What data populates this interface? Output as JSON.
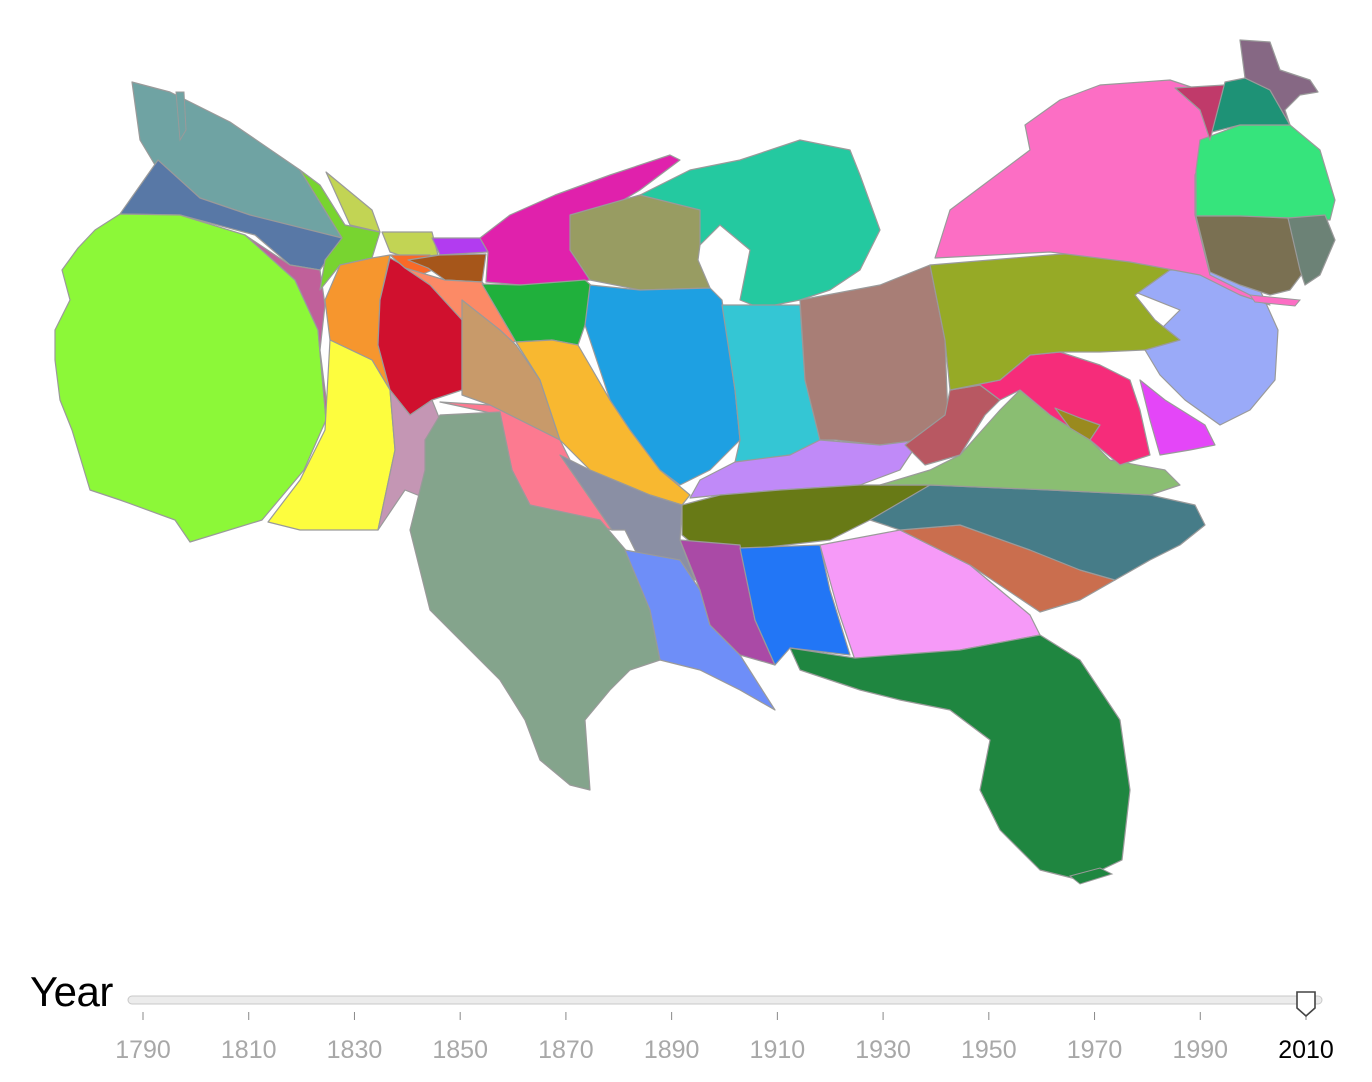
{
  "slider": {
    "label": "Year",
    "min": 1790,
    "max": 2010,
    "value": 2010,
    "ticks": [
      "1790",
      "1810",
      "1830",
      "1850",
      "1870",
      "1890",
      "1910",
      "1930",
      "1950",
      "1970",
      "1990",
      "2010"
    ]
  },
  "map": {
    "colors": {
      "washington": "#6fa3a3",
      "oregon": "#5878a6",
      "california": "#8cf838",
      "nevada": "#c0609a",
      "idaho": "#78d430",
      "montana": "#c2d454",
      "wyoming": "#c2d454",
      "utah": "#f6962e",
      "arizona": "#fdfd3e",
      "colorado": "#d0102e",
      "new_mexico": "#c496b4",
      "north_dakota": "#b23cf0",
      "south_dakota": "#f86a28",
      "nebraska": "#fc8a66",
      "kansas": "#c89a6a",
      "oklahoma": "#fc7a90",
      "texas": "#84a48c",
      "minnesota": "#e021ac",
      "iowa": "#20b03c",
      "missouri": "#f8b830",
      "arkansas": "#8a8fa4",
      "louisiana": "#6e8ef8",
      "wisconsin": "#989c62",
      "illinois": "#1ea0e2",
      "michigan": "#24c9a0",
      "indiana": "#34c6d4",
      "ohio": "#a87e76",
      "kentucky": "#c08af8",
      "tennessee": "#687a16",
      "mississippi": "#aa4aa6",
      "alabama": "#2276f6",
      "georgia": "#f69af8",
      "florida": "#1f8640",
      "south_carolina": "#ca6e4e",
      "north_carolina": "#467c88",
      "virginia": "#8abe72",
      "west_virginia": "#b85862",
      "maryland": "#f62c7a",
      "delaware": "#e446f8",
      "new_jersey": "#9aaaf8",
      "pennsylvania": "#96aa26",
      "new_york": "#fc6ec4",
      "connecticut": "#7a7052",
      "rhode_island": "#6c8276",
      "massachusetts": "#36e47c",
      "vermont": "#c03a6a",
      "new_hampshire": "#1e9276",
      "maine": "#866884",
      "dc": "#9a8a1e"
    }
  }
}
